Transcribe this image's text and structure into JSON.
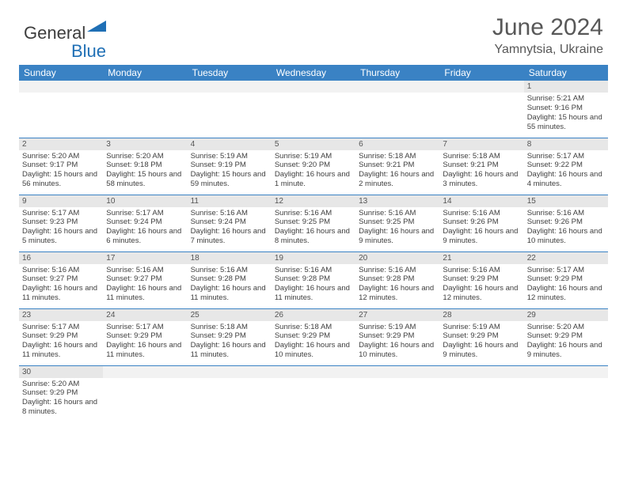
{
  "logo": {
    "text1": "General",
    "text2": "Blue"
  },
  "title": "June 2024",
  "location": "Yamnytsia, Ukraine",
  "header_bg": "#3a82c4",
  "divider_color": "#3a82c4",
  "daynum_bg": "#e7e7e7",
  "days": [
    "Sunday",
    "Monday",
    "Tuesday",
    "Wednesday",
    "Thursday",
    "Friday",
    "Saturday"
  ],
  "weeks": [
    [
      null,
      null,
      null,
      null,
      null,
      null,
      {
        "n": "1",
        "sr": "5:21 AM",
        "ss": "9:16 PM",
        "dl": "15 hours and 55 minutes."
      }
    ],
    [
      {
        "n": "2",
        "sr": "5:20 AM",
        "ss": "9:17 PM",
        "dl": "15 hours and 56 minutes."
      },
      {
        "n": "3",
        "sr": "5:20 AM",
        "ss": "9:18 PM",
        "dl": "15 hours and 58 minutes."
      },
      {
        "n": "4",
        "sr": "5:19 AM",
        "ss": "9:19 PM",
        "dl": "15 hours and 59 minutes."
      },
      {
        "n": "5",
        "sr": "5:19 AM",
        "ss": "9:20 PM",
        "dl": "16 hours and 1 minute."
      },
      {
        "n": "6",
        "sr": "5:18 AM",
        "ss": "9:21 PM",
        "dl": "16 hours and 2 minutes."
      },
      {
        "n": "7",
        "sr": "5:18 AM",
        "ss": "9:21 PM",
        "dl": "16 hours and 3 minutes."
      },
      {
        "n": "8",
        "sr": "5:17 AM",
        "ss": "9:22 PM",
        "dl": "16 hours and 4 minutes."
      }
    ],
    [
      {
        "n": "9",
        "sr": "5:17 AM",
        "ss": "9:23 PM",
        "dl": "16 hours and 5 minutes."
      },
      {
        "n": "10",
        "sr": "5:17 AM",
        "ss": "9:24 PM",
        "dl": "16 hours and 6 minutes."
      },
      {
        "n": "11",
        "sr": "5:16 AM",
        "ss": "9:24 PM",
        "dl": "16 hours and 7 minutes."
      },
      {
        "n": "12",
        "sr": "5:16 AM",
        "ss": "9:25 PM",
        "dl": "16 hours and 8 minutes."
      },
      {
        "n": "13",
        "sr": "5:16 AM",
        "ss": "9:25 PM",
        "dl": "16 hours and 9 minutes."
      },
      {
        "n": "14",
        "sr": "5:16 AM",
        "ss": "9:26 PM",
        "dl": "16 hours and 9 minutes."
      },
      {
        "n": "15",
        "sr": "5:16 AM",
        "ss": "9:26 PM",
        "dl": "16 hours and 10 minutes."
      }
    ],
    [
      {
        "n": "16",
        "sr": "5:16 AM",
        "ss": "9:27 PM",
        "dl": "16 hours and 11 minutes."
      },
      {
        "n": "17",
        "sr": "5:16 AM",
        "ss": "9:27 PM",
        "dl": "16 hours and 11 minutes."
      },
      {
        "n": "18",
        "sr": "5:16 AM",
        "ss": "9:28 PM",
        "dl": "16 hours and 11 minutes."
      },
      {
        "n": "19",
        "sr": "5:16 AM",
        "ss": "9:28 PM",
        "dl": "16 hours and 11 minutes."
      },
      {
        "n": "20",
        "sr": "5:16 AM",
        "ss": "9:28 PM",
        "dl": "16 hours and 12 minutes."
      },
      {
        "n": "21",
        "sr": "5:16 AM",
        "ss": "9:29 PM",
        "dl": "16 hours and 12 minutes."
      },
      {
        "n": "22",
        "sr": "5:17 AM",
        "ss": "9:29 PM",
        "dl": "16 hours and 12 minutes."
      }
    ],
    [
      {
        "n": "23",
        "sr": "5:17 AM",
        "ss": "9:29 PM",
        "dl": "16 hours and 11 minutes."
      },
      {
        "n": "24",
        "sr": "5:17 AM",
        "ss": "9:29 PM",
        "dl": "16 hours and 11 minutes."
      },
      {
        "n": "25",
        "sr": "5:18 AM",
        "ss": "9:29 PM",
        "dl": "16 hours and 11 minutes."
      },
      {
        "n": "26",
        "sr": "5:18 AM",
        "ss": "9:29 PM",
        "dl": "16 hours and 10 minutes."
      },
      {
        "n": "27",
        "sr": "5:19 AM",
        "ss": "9:29 PM",
        "dl": "16 hours and 10 minutes."
      },
      {
        "n": "28",
        "sr": "5:19 AM",
        "ss": "9:29 PM",
        "dl": "16 hours and 9 minutes."
      },
      {
        "n": "29",
        "sr": "5:20 AM",
        "ss": "9:29 PM",
        "dl": "16 hours and 9 minutes."
      }
    ],
    [
      {
        "n": "30",
        "sr": "5:20 AM",
        "ss": "9:29 PM",
        "dl": "16 hours and 8 minutes."
      },
      null,
      null,
      null,
      null,
      null,
      null
    ]
  ],
  "labels": {
    "sunrise": "Sunrise:",
    "sunset": "Sunset:",
    "daylight": "Daylight:"
  }
}
